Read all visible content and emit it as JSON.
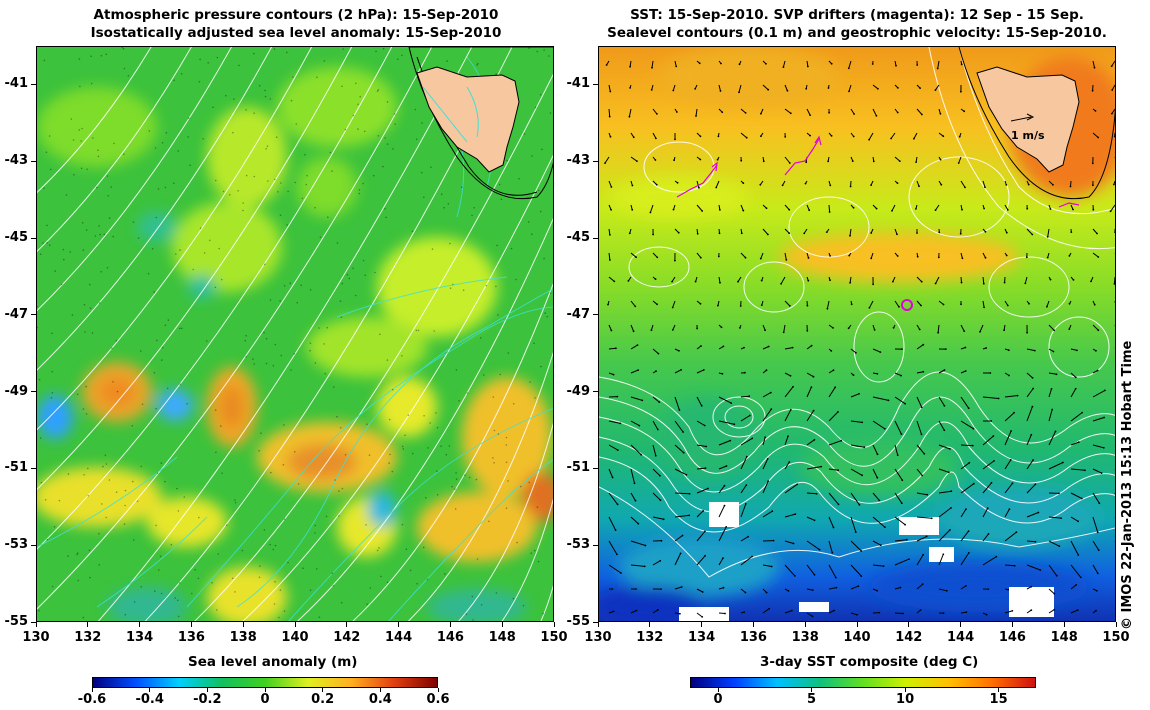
{
  "left_panel": {
    "title_line1": "Atmospheric pressure contours (2 hPa): 15-Sep-2010",
    "title_line2": "Isostatically adjusted sea level anomaly: 15-Sep-2010",
    "colorbar": {
      "label": "Sea level anomaly (m)",
      "ticks": [
        "-0.6",
        "-0.4",
        "-0.2",
        "0",
        "0.2",
        "0.4",
        "0.6"
      ],
      "range": [
        -0.6,
        0.6
      ],
      "colors": [
        "#00007f",
        "#0050ff",
        "#00d0ff",
        "#10c060",
        "#40d020",
        "#e0f020",
        "#ffb020",
        "#e04010",
        "#800000"
      ]
    },
    "pressure_contour_color": "#ffffff",
    "sla_contour_color": "#40e0d0",
    "land_color": "#f7c7a0"
  },
  "right_panel": {
    "title_line1": "SST: 15-Sep-2010. SVP drifters (magenta): 12 Sep - 15 Sep.",
    "title_line2": "Sealevel contours (0.1 m) and geostrophic velocity: 15-Sep-2010.",
    "velocity_scale_label": "1 m/s",
    "colorbar": {
      "label": "3-day SST composite (deg C)",
      "ticks": [
        "0",
        "5",
        "10",
        "15"
      ],
      "range": [
        -1.5,
        17
      ],
      "colors": [
        "#00007f",
        "#0040ff",
        "#00c0ff",
        "#10c080",
        "#60e020",
        "#d0f000",
        "#ffc000",
        "#ff7000",
        "#d01010"
      ]
    },
    "drifter_color": "#e000e0"
  },
  "axes": {
    "x_ticks": [
      "130",
      "132",
      "134",
      "136",
      "138",
      "140",
      "142",
      "144",
      "146",
      "148",
      "150"
    ],
    "y_ticks": [
      "-41",
      "-43",
      "-45",
      "-47",
      "-49",
      "-51",
      "-53",
      "-55"
    ],
    "lon_range": [
      130,
      150
    ],
    "lat_range": [
      -55,
      -40
    ]
  },
  "credit": "© IMOS 22-Jan-2013 15:13 Hobart Time"
}
